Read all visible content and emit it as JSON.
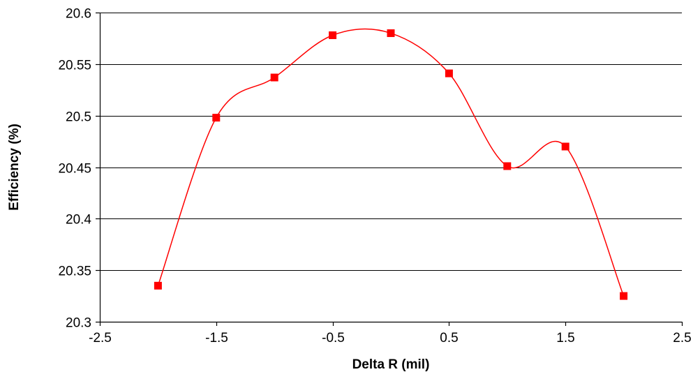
{
  "chart_data": {
    "type": "line",
    "smooth": true,
    "title": "",
    "xlabel": "Delta R (mil)",
    "ylabel": "Efficiency (%)",
    "xlim": [
      -2.5,
      2.5
    ],
    "ylim": [
      20.3,
      20.6
    ],
    "x_ticks": [
      -2.5,
      -1.5,
      -0.5,
      0.5,
      1.5,
      2.5
    ],
    "x_tick_labels": [
      "-2.5",
      "-1.5",
      "-0.5",
      "0.5",
      "1.5",
      "2.5"
    ],
    "y_ticks": [
      20.3,
      20.35,
      20.4,
      20.45,
      20.5,
      20.55,
      20.6
    ],
    "y_tick_labels": [
      "20.3",
      "20.35",
      "20.4",
      "20.45",
      "20.5",
      "20.55",
      "20.6"
    ],
    "grid": "horizontal",
    "legend": "none",
    "series": [
      {
        "color": "#ff0000",
        "marker": "square",
        "x": [
          -2,
          -1.5,
          -1,
          -0.5,
          0,
          0.5,
          1,
          1.5,
          2
        ],
        "y": [
          20.335,
          20.498,
          20.537,
          20.578,
          20.58,
          20.541,
          20.451,
          20.47,
          20.325
        ]
      }
    ]
  }
}
